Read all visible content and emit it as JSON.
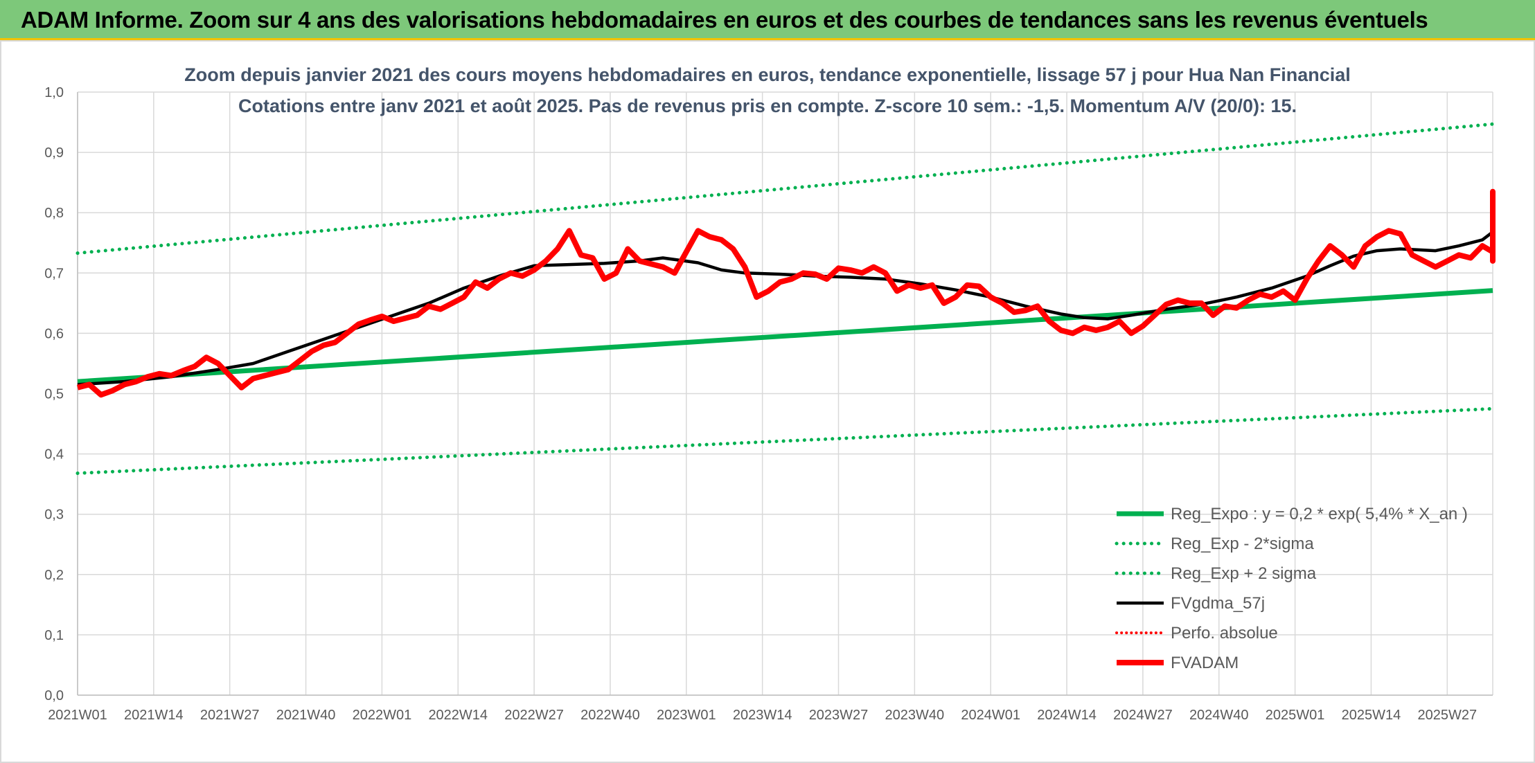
{
  "header": {
    "title": "ADAM Informe. Zoom sur 4 ans des valorisations hebdomadaires en euros et des courbes de tendances sans les revenus éventuels"
  },
  "chart_data": {
    "type": "line",
    "title_lines": [
      "Zoom depuis janvier 2021 des cours moyens hebdomadaires en euros, tendance exponentielle, lissage 57 j pour Hua Nan Financial",
      "Cotations entre janv 2021 et août 2025. Pas de revenus pris en compte. Z-score 10 sem.: -1,5. Momentum A/V (20/0): 15."
    ],
    "ylim": [
      0,
      1.0
    ],
    "y_ticks": [
      "0,0",
      "0,1",
      "0,2",
      "0,3",
      "0,4",
      "0,5",
      "0,6",
      "0,7",
      "0,8",
      "0,9",
      "1,0"
    ],
    "x_tick_labels": [
      "2021W01",
      "2021W14",
      "2021W27",
      "2021W40",
      "2022W01",
      "2022W14",
      "2022W27",
      "2022W40",
      "2023W01",
      "2023W14",
      "2023W27",
      "2023W40",
      "2024W01",
      "2024W14",
      "2024W27",
      "2024W40",
      "2025W01",
      "2025W14",
      "2025W27"
    ],
    "week_range": [
      0,
      245
    ],
    "grid": true,
    "legend_position": "bottom-right",
    "colors": {
      "green": "#00b050",
      "black": "#000000",
      "red": "#ff0000"
    },
    "series": [
      {
        "name": "Reg_Expo : y = 0,2 * exp( 5,4% *  X_an )",
        "style": "solid-green",
        "points": [
          [
            0,
            0.52
          ],
          [
            245,
            0.671
          ]
        ]
      },
      {
        "name": "Reg_Exp - 2*sigma",
        "style": "dotted-green",
        "points": [
          [
            0,
            0.368
          ],
          [
            245,
            0.475
          ]
        ]
      },
      {
        "name": "Reg_Exp + 2 sigma",
        "style": "dotted-green",
        "points": [
          [
            0,
            0.733
          ],
          [
            245,
            0.947
          ]
        ]
      },
      {
        "name": "FVgdma_57j",
        "style": "solid-black",
        "points": [
          [
            0,
            0.515
          ],
          [
            8,
            0.52
          ],
          [
            16,
            0.528
          ],
          [
            24,
            0.54
          ],
          [
            30,
            0.55
          ],
          [
            36,
            0.57
          ],
          [
            42,
            0.59
          ],
          [
            48,
            0.61
          ],
          [
            54,
            0.63
          ],
          [
            60,
            0.65
          ],
          [
            66,
            0.675
          ],
          [
            72,
            0.695
          ],
          [
            78,
            0.712
          ],
          [
            84,
            0.714
          ],
          [
            90,
            0.716
          ],
          [
            96,
            0.72
          ],
          [
            100,
            0.725
          ],
          [
            106,
            0.717
          ],
          [
            110,
            0.705
          ],
          [
            114,
            0.7
          ],
          [
            120,
            0.698
          ],
          [
            126,
            0.695
          ],
          [
            132,
            0.693
          ],
          [
            138,
            0.69
          ],
          [
            144,
            0.682
          ],
          [
            150,
            0.672
          ],
          [
            156,
            0.66
          ],
          [
            162,
            0.645
          ],
          [
            168,
            0.632
          ],
          [
            172,
            0.626
          ],
          [
            176,
            0.624
          ],
          [
            180,
            0.63
          ],
          [
            186,
            0.64
          ],
          [
            192,
            0.648
          ],
          [
            198,
            0.66
          ],
          [
            204,
            0.675
          ],
          [
            210,
            0.695
          ],
          [
            214,
            0.712
          ],
          [
            218,
            0.728
          ],
          [
            222,
            0.737
          ],
          [
            226,
            0.74
          ],
          [
            232,
            0.737
          ],
          [
            236,
            0.745
          ],
          [
            240,
            0.755
          ],
          [
            244,
            0.768
          ],
          [
            246,
            0.775
          ],
          [
            250,
            0.785
          ],
          [
            254,
            0.79
          ],
          [
            258,
            0.788
          ],
          [
            262,
            0.778
          ],
          [
            266,
            0.785
          ],
          [
            270,
            0.79
          ],
          [
            274,
            0.795
          ],
          [
            278,
            0.8
          ],
          [
            282,
            0.797
          ]
        ]
      },
      {
        "name": "Perfo. absolue",
        "style": "dotted-red",
        "points": []
      },
      {
        "name": "FVADAM",
        "style": "solid-red",
        "points": [
          [
            0,
            0.51
          ],
          [
            2,
            0.515
          ],
          [
            4,
            0.498
          ],
          [
            6,
            0.505
          ],
          [
            8,
            0.515
          ],
          [
            10,
            0.52
          ],
          [
            12,
            0.528
          ],
          [
            14,
            0.533
          ],
          [
            16,
            0.53
          ],
          [
            18,
            0.538
          ],
          [
            20,
            0.545
          ],
          [
            22,
            0.56
          ],
          [
            24,
            0.55
          ],
          [
            26,
            0.53
          ],
          [
            28,
            0.51
          ],
          [
            30,
            0.525
          ],
          [
            32,
            0.53
          ],
          [
            34,
            0.535
          ],
          [
            36,
            0.54
          ],
          [
            38,
            0.555
          ],
          [
            40,
            0.57
          ],
          [
            42,
            0.58
          ],
          [
            44,
            0.585
          ],
          [
            46,
            0.6
          ],
          [
            48,
            0.615
          ],
          [
            50,
            0.622
          ],
          [
            52,
            0.628
          ],
          [
            54,
            0.62
          ],
          [
            56,
            0.625
          ],
          [
            58,
            0.63
          ],
          [
            60,
            0.645
          ],
          [
            62,
            0.64
          ],
          [
            64,
            0.65
          ],
          [
            66,
            0.66
          ],
          [
            68,
            0.685
          ],
          [
            70,
            0.675
          ],
          [
            72,
            0.69
          ],
          [
            74,
            0.7
          ],
          [
            76,
            0.695
          ],
          [
            78,
            0.705
          ],
          [
            80,
            0.72
          ],
          [
            82,
            0.74
          ],
          [
            84,
            0.77
          ],
          [
            86,
            0.73
          ],
          [
            88,
            0.725
          ],
          [
            90,
            0.69
          ],
          [
            92,
            0.7
          ],
          [
            94,
            0.74
          ],
          [
            96,
            0.72
          ],
          [
            98,
            0.715
          ],
          [
            100,
            0.71
          ],
          [
            102,
            0.7
          ],
          [
            104,
            0.735
          ],
          [
            106,
            0.77
          ],
          [
            108,
            0.76
          ],
          [
            110,
            0.755
          ],
          [
            112,
            0.74
          ],
          [
            114,
            0.71
          ],
          [
            116,
            0.66
          ],
          [
            118,
            0.67
          ],
          [
            120,
            0.685
          ],
          [
            122,
            0.69
          ],
          [
            124,
            0.7
          ],
          [
            126,
            0.698
          ],
          [
            128,
            0.69
          ],
          [
            130,
            0.708
          ],
          [
            132,
            0.705
          ],
          [
            134,
            0.7
          ],
          [
            136,
            0.71
          ],
          [
            138,
            0.7
          ],
          [
            140,
            0.67
          ],
          [
            142,
            0.68
          ],
          [
            144,
            0.675
          ],
          [
            146,
            0.68
          ],
          [
            148,
            0.65
          ],
          [
            150,
            0.66
          ],
          [
            152,
            0.68
          ],
          [
            154,
            0.678
          ],
          [
            156,
            0.66
          ],
          [
            158,
            0.65
          ],
          [
            160,
            0.635
          ],
          [
            162,
            0.638
          ],
          [
            164,
            0.645
          ],
          [
            166,
            0.62
          ],
          [
            168,
            0.605
          ],
          [
            170,
            0.6
          ],
          [
            172,
            0.61
          ],
          [
            174,
            0.605
          ],
          [
            176,
            0.61
          ],
          [
            178,
            0.62
          ],
          [
            180,
            0.6
          ],
          [
            182,
            0.612
          ],
          [
            184,
            0.63
          ],
          [
            186,
            0.648
          ],
          [
            188,
            0.655
          ],
          [
            190,
            0.65
          ],
          [
            192,
            0.65
          ],
          [
            194,
            0.63
          ],
          [
            196,
            0.645
          ],
          [
            198,
            0.642
          ],
          [
            200,
            0.655
          ],
          [
            202,
            0.665
          ],
          [
            204,
            0.66
          ],
          [
            206,
            0.67
          ],
          [
            208,
            0.655
          ],
          [
            210,
            0.69
          ],
          [
            212,
            0.72
          ],
          [
            214,
            0.745
          ],
          [
            216,
            0.73
          ],
          [
            218,
            0.71
          ],
          [
            220,
            0.745
          ],
          [
            222,
            0.76
          ],
          [
            224,
            0.77
          ],
          [
            226,
            0.765
          ],
          [
            228,
            0.73
          ],
          [
            230,
            0.72
          ],
          [
            232,
            0.71
          ],
          [
            234,
            0.72
          ],
          [
            236,
            0.73
          ],
          [
            238,
            0.725
          ],
          [
            240,
            0.745
          ],
          [
            242,
            0.735
          ],
          [
            244,
            0.75
          ],
          [
            246,
            0.78
          ],
          [
            248,
            0.8
          ],
          [
            250,
            0.78
          ],
          [
            252,
            0.795
          ],
          [
            254,
            0.82
          ],
          [
            256,
            0.82
          ],
          [
            258,
            0.815
          ],
          [
            260,
            0.8
          ],
          [
            262,
            0.775
          ],
          [
            264,
            0.79
          ],
          [
            266,
            0.77
          ],
          [
            268,
            0.72
          ],
          [
            270,
            0.73
          ],
          [
            272,
            0.8
          ],
          [
            274,
            0.82
          ],
          [
            276,
            0.805
          ],
          [
            278,
            0.775
          ],
          [
            280,
            0.79
          ],
          [
            282,
            0.8
          ],
          [
            284,
            0.83
          ],
          [
            286,
            0.835
          ],
          [
            288,
            0.8
          ],
          [
            290,
            0.79
          ]
        ]
      }
    ]
  }
}
